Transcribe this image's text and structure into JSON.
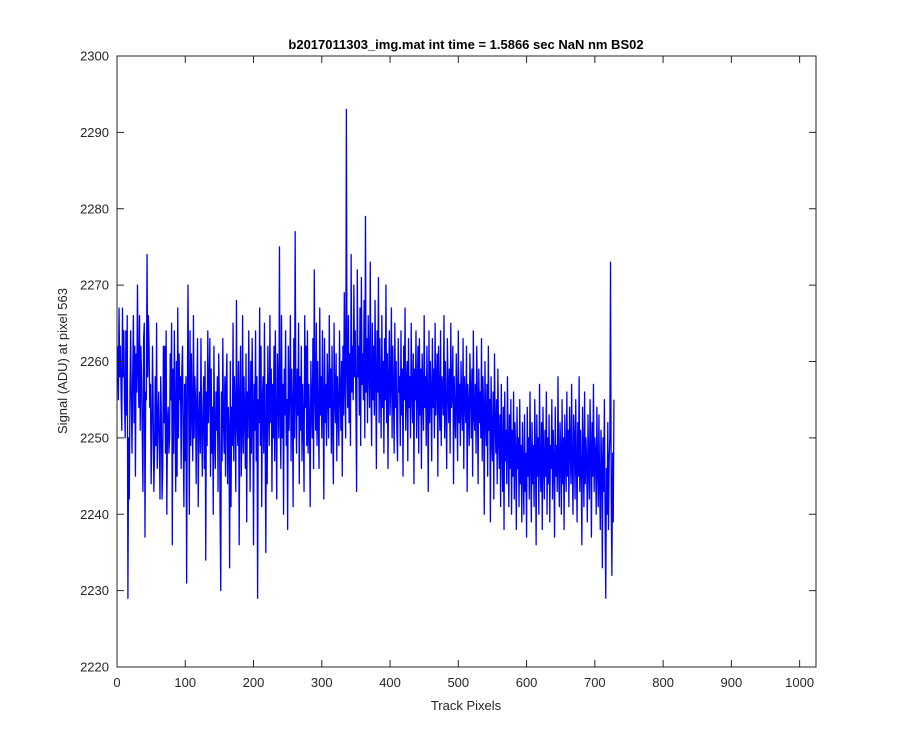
{
  "chart_data": {
    "type": "line",
    "title": "b2017011303_img.mat int time = 1.5866 sec  NaN nm BS02",
    "xlabel": "Track Pixels",
    "ylabel": "Signal (ADU) at pixel 563",
    "xlim": [
      0,
      1024
    ],
    "ylim": [
      2220,
      2300
    ],
    "xticks": [
      0,
      100,
      200,
      300,
      400,
      500,
      600,
      700,
      800,
      900,
      1000
    ],
    "yticks": [
      2220,
      2230,
      2240,
      2250,
      2260,
      2270,
      2280,
      2290,
      2300
    ],
    "grid": false,
    "series": [
      {
        "color": "#0000ff",
        "x_start": 1,
        "x_step": 1,
        "values": [
          2262,
          2255,
          2267,
          2258,
          2262,
          2256,
          2251,
          2267,
          2258,
          2264,
          2255,
          2250,
          2264,
          2253,
          2266,
          2229,
          2250,
          2242,
          2256,
          2264,
          2255,
          2248,
          2258,
          2266,
          2252,
          2262,
          2245,
          2261,
          2256,
          2270,
          2259,
          2254,
          2266,
          2251,
          2262,
          2258,
          2250,
          2243,
          2263,
          2265,
          2237,
          2256,
          2255,
          2274,
          2258,
          2266,
          2262,
          2254,
          2257,
          2244,
          2250,
          2262,
          2254,
          2243,
          2248,
          2258,
          2249,
          2265,
          2246,
          2252,
          2256,
          2249,
          2242,
          2258,
          2253,
          2242,
          2246,
          2262,
          2252,
          2262,
          2248,
          2264,
          2240,
          2252,
          2254,
          2248,
          2250,
          2261,
          2255,
          2265,
          2236,
          2259,
          2248,
          2264,
          2254,
          2243,
          2260,
          2245,
          2267,
          2250,
          2261,
          2255,
          2258,
          2246,
          2259,
          2262,
          2250,
          2241,
          2257,
          2247,
          2258,
          2231,
          2254,
          2270,
          2256,
          2240,
          2264,
          2249,
          2261,
          2253,
          2247,
          2266,
          2250,
          2258,
          2255,
          2244,
          2256,
          2263,
          2241,
          2252,
          2256,
          2248,
          2263,
          2251,
          2245,
          2254,
          2258,
          2246,
          2260,
          2234,
          2256,
          2249,
          2264,
          2252,
          2257,
          2263,
          2245,
          2259,
          2248,
          2254,
          2240,
          2262,
          2250,
          2246,
          2256,
          2251,
          2258,
          2243,
          2261,
          2255,
          2240,
          2230,
          2256,
          2247,
          2263,
          2252,
          2248,
          2258,
          2245,
          2257,
          2261,
          2244,
          2254,
          2251,
          2233,
          2260,
          2241,
          2254,
          2249,
          2265,
          2247,
          2258,
          2254,
          2243,
          2268,
          2252,
          2249,
          2260,
          2236,
          2255,
          2262,
          2245,
          2251,
          2266,
          2248,
          2258,
          2253,
          2246,
          2261,
          2239,
          2256,
          2250,
          2264,
          2254,
          2243,
          2260,
          2248,
          2263,
          2254,
          2236,
          2257,
          2251,
          2264,
          2247,
          2258,
          2229,
          2255,
          2252,
          2267,
          2249,
          2262,
          2241,
          2255,
          2258,
          2248,
          2265,
          2251,
          2235,
          2257,
          2244,
          2262,
          2254,
          2249,
          2266,
          2252,
          2259,
          2243,
          2257,
          2250,
          2262,
          2247,
          2264,
          2252,
          2242,
          2261,
          2256,
          2250,
          2275,
          2253,
          2246,
          2266,
          2250,
          2257,
          2240,
          2259,
          2253,
          2264,
          2249,
          2255,
          2238,
          2262,
          2251,
          2256,
          2266,
          2247,
          2259,
          2254,
          2241,
          2263,
          2250,
          2277,
          2255,
          2248,
          2259,
          2253,
          2265,
          2244,
          2258,
          2251,
          2262,
          2247,
          2257,
          2252,
          2243,
          2266,
          2254,
          2262,
          2249,
          2264,
          2248,
          2257,
          2252,
          2241,
          2260,
          2254,
          2250,
          2263,
          2246,
          2272,
          2256,
          2251,
          2265,
          2249,
          2260,
          2252,
          2246,
          2267,
          2253,
          2258,
          2250,
          2264,
          2254,
          2242,
          2263,
          2252,
          2257,
          2249,
          2261,
          2256,
          2250,
          2266,
          2254,
          2259,
          2248,
          2262,
          2251,
          2244,
          2265,
          2255,
          2252,
          2261,
          2247,
          2258,
          2254,
          2249,
          2264,
          2256,
          2251,
          2260,
          2245,
          2262,
          2253,
          2269,
          2257,
          2250,
          2293,
          2259,
          2254,
          2266,
          2252,
          2261,
          2249,
          2274,
          2256,
          2262,
          2255,
          2270,
          2258,
          2264,
          2254,
          2243,
          2272,
          2258,
          2262,
          2253,
          2267,
          2249,
          2271,
          2257,
          2261,
          2255,
          2268,
          2250,
          2279,
          2256,
          2263,
          2252,
          2266,
          2259,
          2254,
          2273,
          2257,
          2249,
          2265,
          2255,
          2262,
          2253,
          2268,
          2258,
          2246,
          2264,
          2256,
          2271,
          2252,
          2263,
          2257,
          2250,
          2266,
          2254,
          2260,
          2248,
          2263,
          2255,
          2270,
          2252,
          2261,
          2246,
          2258,
          2264,
          2253,
          2257,
          2267,
          2250,
          2262,
          2256,
          2248,
          2265,
          2254,
          2260,
          2251,
          2247,
          2263,
          2256,
          2258,
          2249,
          2264,
          2253,
          2259,
          2245,
          2262,
          2255,
          2267,
          2251,
          2257,
          2260,
          2247,
          2263,
          2254,
          2258,
          2250,
          2265,
          2256,
          2252,
          2261,
          2244,
          2259,
          2255,
          2264,
          2250,
          2257,
          2262,
          2248,
          2263,
          2253,
          2259,
          2246,
          2261,
          2256,
          2251,
          2266,
          2254,
          2258,
          2249,
          2262,
          2255,
          2243,
          2264,
          2252,
          2260,
          2256,
          2247,
          2263,
          2254,
          2259,
          2250,
          2265,
          2253,
          2257,
          2261,
          2245,
          2262,
          2255,
          2251,
          2264,
          2249,
          2258,
          2256,
          2253,
          2266,
          2250,
          2260,
          2254,
          2246,
          2263,
          2257,
          2252,
          2259,
          2248,
          2265,
          2254,
          2256,
          2262,
          2244,
          2258,
          2253,
          2250,
          2261,
          2255,
          2247,
          2264,
          2252,
          2257,
          2249,
          2260,
          2254,
          2251,
          2263,
          2246,
          2258,
          2255,
          2252,
          2262,
          2243,
          2257,
          2254,
          2249,
          2261,
          2256,
          2250,
          2259,
          2245,
          2264,
          2253,
          2251,
          2257,
          2248,
          2262,
          2255,
          2244,
          2259,
          2252,
          2256,
          2250,
          2263,
          2247,
          2258,
          2254,
          2240,
          2260,
          2253,
          2249,
          2257,
          2245,
          2262,
          2251,
          2255,
          2239,
          2258,
          2250,
          2247,
          2256,
          2242,
          2261,
          2252,
          2248,
          2255,
          2244,
          2259,
          2250,
          2246,
          2253,
          2241,
          2257,
          2249,
          2243,
          2254,
          2238,
          2256,
          2247,
          2251,
          2244,
          2258,
          2249,
          2241,
          2253,
          2246,
          2255,
          2240,
          2251,
          2245,
          2256,
          2242,
          2252,
          2248,
          2238,
          2254,
          2246,
          2250,
          2241,
          2255,
          2244,
          2249,
          2239,
          2252,
          2246,
          2240,
          2253,
          2243,
          2248,
          2237,
          2254,
          2245,
          2250,
          2242,
          2256,
          2247,
          2239,
          2252,
          2244,
          2249,
          2241,
          2255,
          2248,
          2236,
          2253,
          2245,
          2250,
          2240,
          2257,
          2246,
          2243,
          2252,
          2238,
          2254,
          2247,
          2242,
          2251,
          2245,
          2256,
          2240,
          2250,
          2244,
          2253,
          2239,
          2249,
          2246,
          2255,
          2242,
          2251,
          2247,
          2237,
          2254,
          2245,
          2249,
          2243,
          2258,
          2246,
          2241,
          2252,
          2248,
          2240,
          2255,
          2244,
          2250,
          2238,
          2253,
          2247,
          2243,
          2256,
          2245,
          2251,
          2241,
          2254,
          2249,
          2244,
          2257,
          2246,
          2240,
          2253,
          2250,
          2242,
          2255,
          2247,
          2239,
          2252,
          2245,
          2258,
          2243,
          2251,
          2246,
          2236,
          2254,
          2248,
          2241,
          2256,
          2244,
          2250,
          2247,
          2239,
          2253,
          2246,
          2242,
          2255,
          2249,
          2237,
          2252,
          2245,
          2257,
          2243,
          2250,
          2248,
          2240,
          2254,
          2246,
          2241,
          2253,
          2244,
          2238,
          2251,
          2247,
          2233,
          2250,
          2243,
          2255,
          2240,
          2229,
          2246,
          2240,
          2252,
          2238,
          2247,
          2250,
          2273,
          2242,
          2232,
          2248,
          2239,
          2255
        ]
      }
    ]
  }
}
